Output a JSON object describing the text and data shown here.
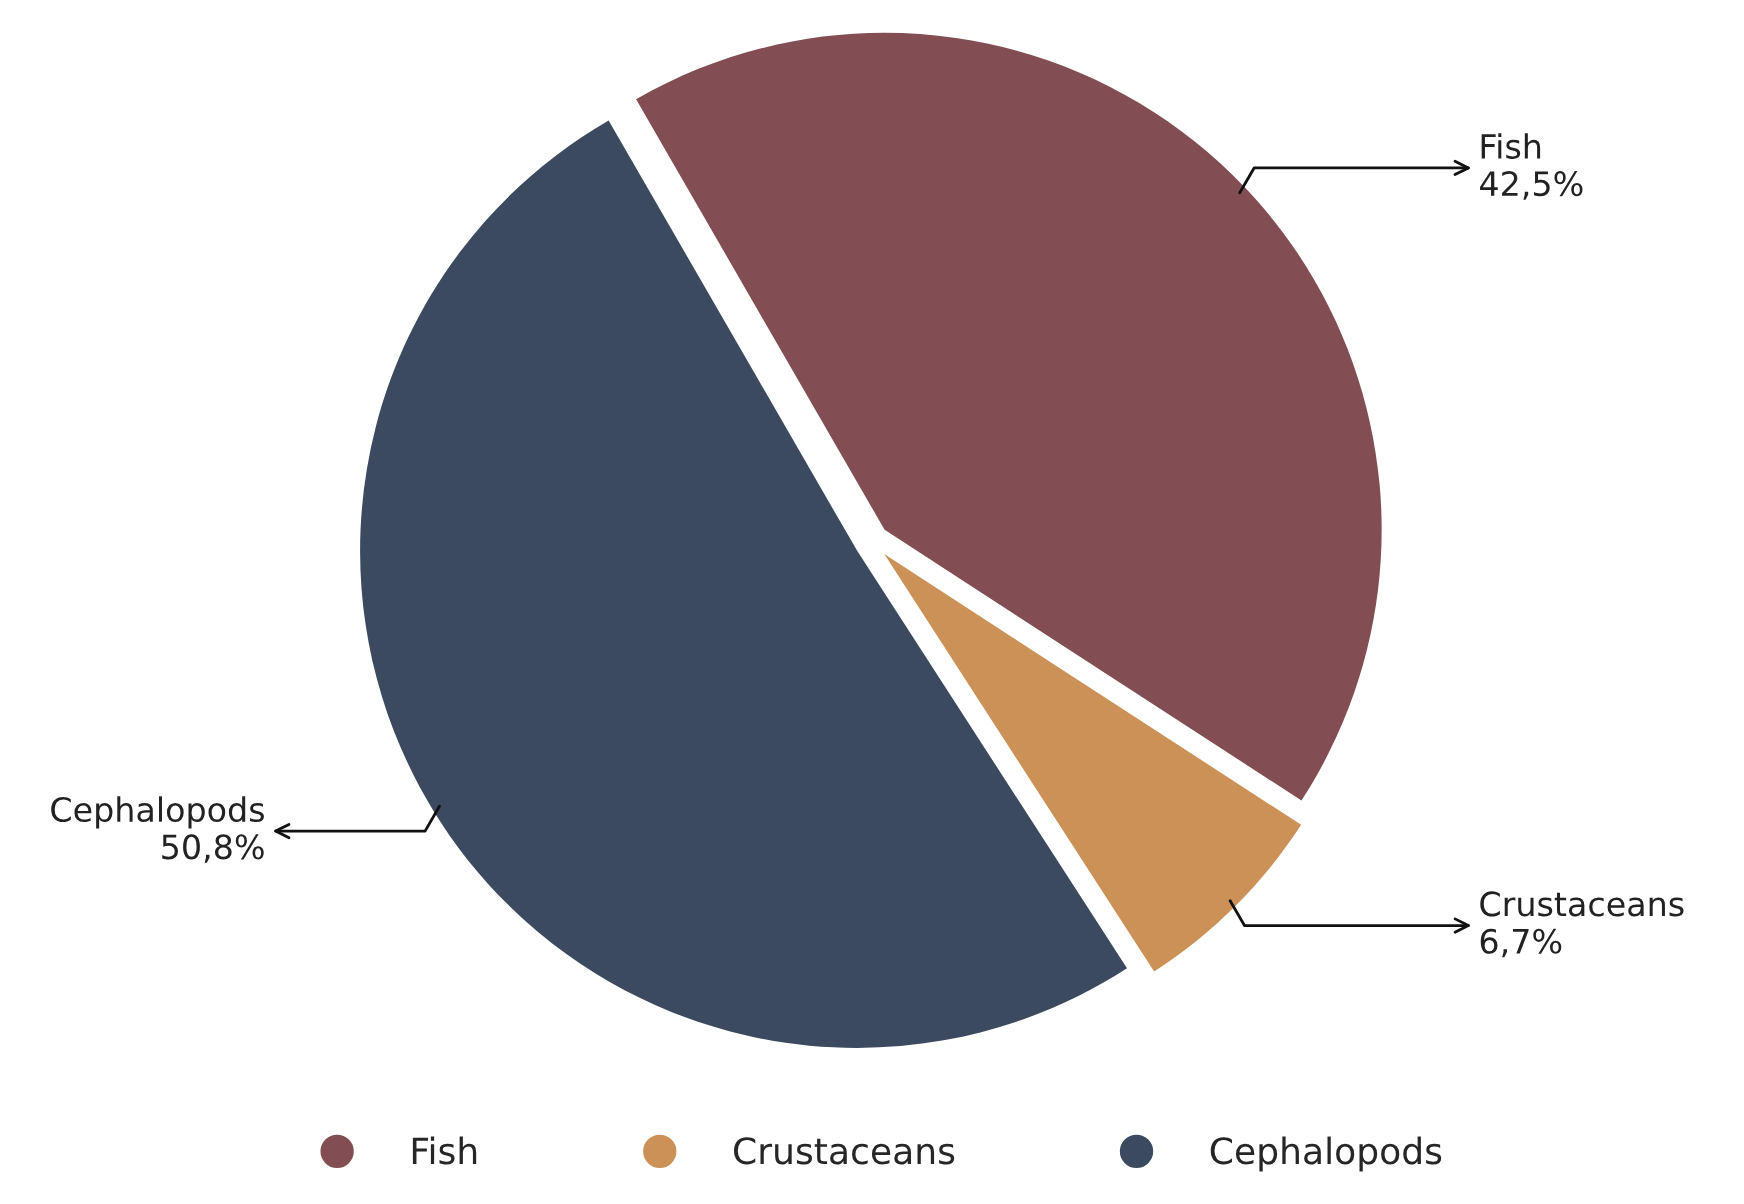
{
  "chart_data": {
    "type": "pie",
    "categories": [
      "Fish",
      "Crustaceans",
      "Cephalopods"
    ],
    "values": [
      42.5,
      6.7,
      50.8
    ],
    "value_labels": [
      "42,5%",
      "6,7%",
      "50,8%"
    ],
    "colors": [
      "#834e53",
      "#cb9157",
      "#3b4a5f"
    ],
    "legend": "bottom"
  }
}
